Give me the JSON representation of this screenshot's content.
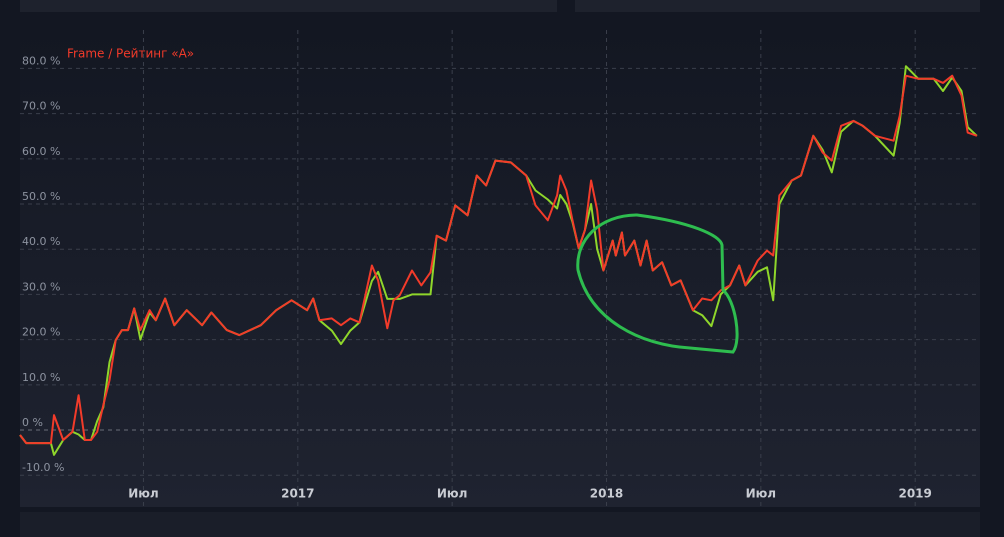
{
  "chart_data": {
    "type": "line",
    "title": "Frame / Рейтинг «A»",
    "xlim": [
      2016.1,
      2019.21
    ],
    "xticks": [
      {
        "value": 2016.5,
        "label": "Июл"
      },
      2017,
      {
        "value": 2017.5,
        "label": "Июл"
      },
      2018,
      {
        "value": 2018.5,
        "label": "Июл"
      },
      2019
    ],
    "ylim": [
      -11.5,
      88.5
    ],
    "yticks": [
      {
        "value": -10,
        "label": "-10.0 %"
      },
      {
        "value": 0,
        "label": "0 %"
      },
      {
        "value": 10,
        "label": "10.0 %"
      },
      {
        "value": 20,
        "label": "20.0 %"
      },
      {
        "value": 30,
        "label": "30.0 %"
      },
      {
        "value": 40,
        "label": "40.0 %"
      },
      {
        "value": 50,
        "label": "50.0 %"
      },
      {
        "value": 60,
        "label": "60.0 %"
      },
      {
        "value": 70,
        "label": "70.0 %"
      },
      {
        "value": 80,
        "label": "80.0 %"
      }
    ],
    "grid": true,
    "x": [
      2016.1,
      2016.12,
      2016.2,
      2016.21,
      2016.24,
      2016.27,
      2016.29,
      2016.31,
      2016.33,
      2016.35,
      2016.37,
      2016.39,
      2016.41,
      2016.43,
      2016.45,
      2016.47,
      2016.49,
      2016.52,
      2016.54,
      2016.57,
      2016.6,
      2016.64,
      2016.69,
      2016.72,
      2016.77,
      2016.81,
      2016.88,
      2016.93,
      2016.98,
      2017.03,
      2017.05,
      2017.07,
      2017.11,
      2017.14,
      2017.17,
      2017.2,
      2017.24,
      2017.26,
      2017.29,
      2017.31,
      2017.33,
      2017.37,
      2017.4,
      2017.43,
      2017.45,
      2017.48,
      2017.51,
      2017.55,
      2017.58,
      2017.61,
      2017.64,
      2017.69,
      2017.74,
      2017.77,
      2017.81,
      2017.84,
      2017.85,
      2017.87,
      2017.89,
      2017.91,
      2017.93,
      2017.95,
      2017.97,
      2017.99,
      2018.02,
      2018.03,
      2018.05,
      2018.06,
      2018.09,
      2018.11,
      2018.13,
      2018.15,
      2018.18,
      2018.21,
      2018.24,
      2018.28,
      2018.31,
      2018.34,
      2018.37,
      2018.4,
      2018.43,
      2018.45,
      2018.49,
      2018.52,
      2018.54,
      2018.56,
      2018.6,
      2018.63,
      2018.67,
      2018.7,
      2018.73,
      2018.76,
      2018.8,
      2018.83,
      2018.87,
      2018.93,
      2018.95,
      2018.97,
      2019.01,
      2019.06,
      2019.09,
      2019.12,
      2019.15,
      2019.17,
      2019.2
    ],
    "series": [
      {
        "color": "#8fd62b",
        "values": [
          -1.1,
          -2.9,
          -2.9,
          -5.5,
          -2.2,
          -0.4,
          -1.0,
          -2.2,
          -2.2,
          2.0,
          5.0,
          15.0,
          19.9,
          22.1,
          22.1,
          26.9,
          20.0,
          26.0,
          24.3,
          29.1,
          23.2,
          26.5,
          23.2,
          26.0,
          22.1,
          21.0,
          23.2,
          26.5,
          28.7,
          26.5,
          29.1,
          24.3,
          22.0,
          19.0,
          22.0,
          23.8,
          33.0,
          35.0,
          29.0,
          29.0,
          29.0,
          30.0,
          30.0,
          30.0,
          43.0,
          41.9,
          49.7,
          47.5,
          56.3,
          54.1,
          59.6,
          59.2,
          56.3,
          53.0,
          51.0,
          49.0,
          52.0,
          50.0,
          46.0,
          40.2,
          44.2,
          50.0,
          40.0,
          35.3,
          41.9,
          38.6,
          43.7,
          38.6,
          41.9,
          36.4,
          41.9,
          35.3,
          37.1,
          32.0,
          33.1,
          26.5,
          25.4,
          23.0,
          30.0,
          32.0,
          36.4,
          32.0,
          35.0,
          36.0,
          28.7,
          50.0,
          55.2,
          56.3,
          65.1,
          62.0,
          57.0,
          66.0,
          68.4,
          67.3,
          65.1,
          60.7,
          68.0,
          80.5,
          77.7,
          77.7,
          75.0,
          78.0,
          75.0,
          67.0,
          65.1
        ]
      },
      {
        "color": "#f23b2a",
        "values": [
          -1.1,
          -2.9,
          -2.9,
          3.3,
          -2.2,
          -0.4,
          7.7,
          -2.2,
          -2.2,
          -0.4,
          5.5,
          11.0,
          19.9,
          22.1,
          22.1,
          26.9,
          22.1,
          26.5,
          24.3,
          29.1,
          23.2,
          26.5,
          23.2,
          26.0,
          22.1,
          21.0,
          23.2,
          26.5,
          28.7,
          26.5,
          29.1,
          24.3,
          24.7,
          23.2,
          24.7,
          23.8,
          36.4,
          33.1,
          22.5,
          28.7,
          29.8,
          35.3,
          32.0,
          34.9,
          43.0,
          41.9,
          49.7,
          47.5,
          56.3,
          54.1,
          59.6,
          59.2,
          56.3,
          49.7,
          46.4,
          51.9,
          56.3,
          53.0,
          46.4,
          40.2,
          44.2,
          55.2,
          48.6,
          35.3,
          41.9,
          38.6,
          43.7,
          38.6,
          41.9,
          36.4,
          41.9,
          35.3,
          37.1,
          32.0,
          33.1,
          26.5,
          29.1,
          28.7,
          30.9,
          32.0,
          36.4,
          32.0,
          37.5,
          39.7,
          38.6,
          51.9,
          55.2,
          56.3,
          65.1,
          61.4,
          59.6,
          67.3,
          68.4,
          67.3,
          65.1,
          64.0,
          69.5,
          78.4,
          77.7,
          77.7,
          76.8,
          78.4,
          74.0,
          65.8,
          65.1
        ]
      }
    ]
  }
}
